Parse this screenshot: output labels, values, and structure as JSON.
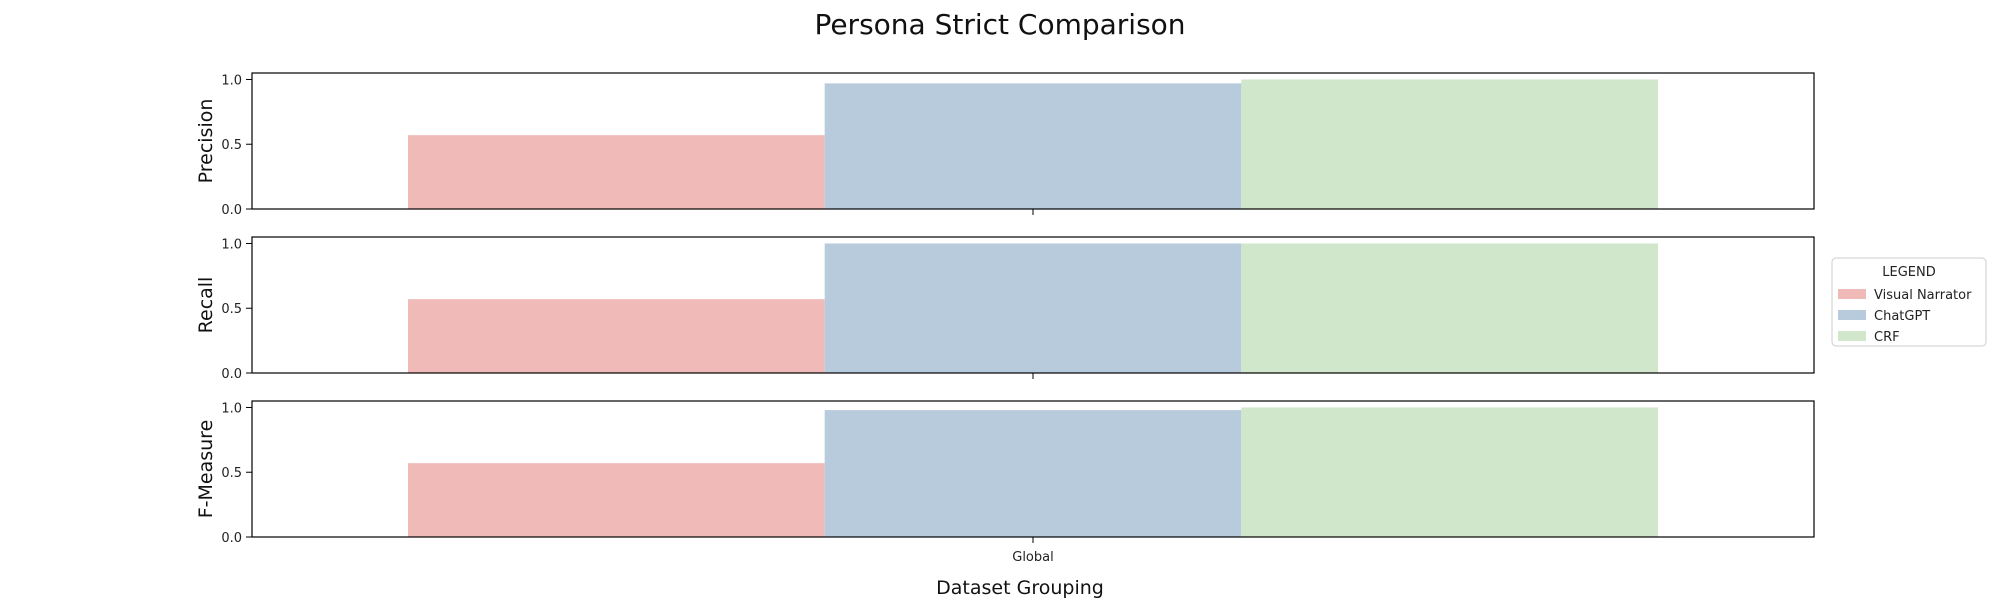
{
  "chart_data": {
    "type": "bar",
    "title": "Persona Strict Comparison",
    "xlabel": "Dataset Grouping",
    "categories": [
      "Global"
    ],
    "ylim": [
      0,
      1.05
    ],
    "yticks": [
      0.0,
      0.5,
      1.0
    ],
    "ytick_labels": [
      "0.0",
      "0.5",
      "1.0"
    ],
    "panels": [
      {
        "ylabel": "Precision",
        "values": {
          "Visual Narrator": 0.57,
          "ChatGPT": 0.97,
          "CRF": 1.0
        }
      },
      {
        "ylabel": "Recall",
        "values": {
          "Visual Narrator": 0.57,
          "ChatGPT": 1.0,
          "CRF": 1.0
        }
      },
      {
        "ylabel": "F-Measure",
        "values": {
          "Visual Narrator": 0.57,
          "ChatGPT": 0.98,
          "CRF": 1.0
        }
      }
    ],
    "series": [
      {
        "name": "Visual Narrator",
        "color": "#f0bab8"
      },
      {
        "name": "ChatGPT",
        "color": "#b8cbdd"
      },
      {
        "name": "CRF",
        "color": "#d1e7cb"
      }
    ],
    "legend": {
      "title": "LEGEND",
      "placement": "right"
    },
    "grid": false
  }
}
